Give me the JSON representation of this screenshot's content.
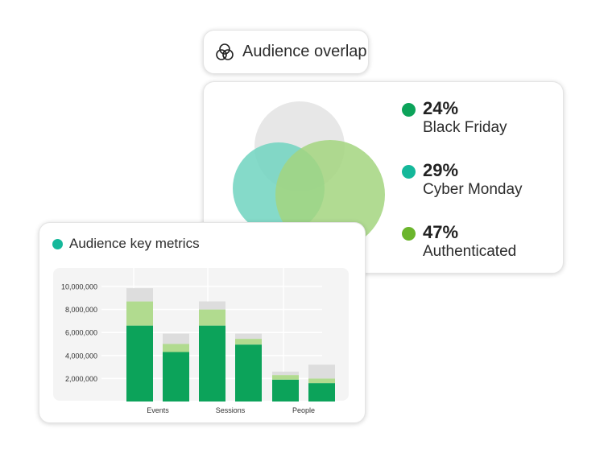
{
  "pill": {
    "icon": "venn-icon",
    "label": "Audience overlap"
  },
  "overlap": {
    "stats": [
      {
        "pct": "24%",
        "label": "Black Friday",
        "color": "#0ca35a"
      },
      {
        "pct": "29%",
        "label": "Cyber Monday",
        "color": "#15b89a"
      },
      {
        "pct": "47%",
        "label": "Authenticated",
        "color": "#6bb52c"
      }
    ],
    "circle_colors": [
      "#e3e3e3",
      "#70d3c0",
      "#a3d57f"
    ]
  },
  "metrics": {
    "title": "Audience key metrics",
    "dot_color": "#15b89a"
  },
  "chart_data": {
    "type": "bar",
    "stacked": true,
    "groups": [
      "Events",
      "Sessions",
      "People"
    ],
    "bars_per_group": 2,
    "series": [
      {
        "color": "#0ca35a",
        "values": [
          6600000,
          4300000,
          6600000,
          4950000,
          1900000,
          1600000
        ]
      },
      {
        "color": "#b1db8f",
        "values": [
          2100000,
          700000,
          1400000,
          500000,
          400000,
          400000
        ]
      },
      {
        "color": "#dddddd",
        "values": [
          1150000,
          900000,
          700000,
          450000,
          300000,
          1200000
        ]
      }
    ],
    "yticks": [
      "2,000,000",
      "4,000,000",
      "6,000,000",
      "8,000,000",
      "10,000,000"
    ],
    "ylim": [
      0,
      10000000
    ],
    "grid": true
  }
}
